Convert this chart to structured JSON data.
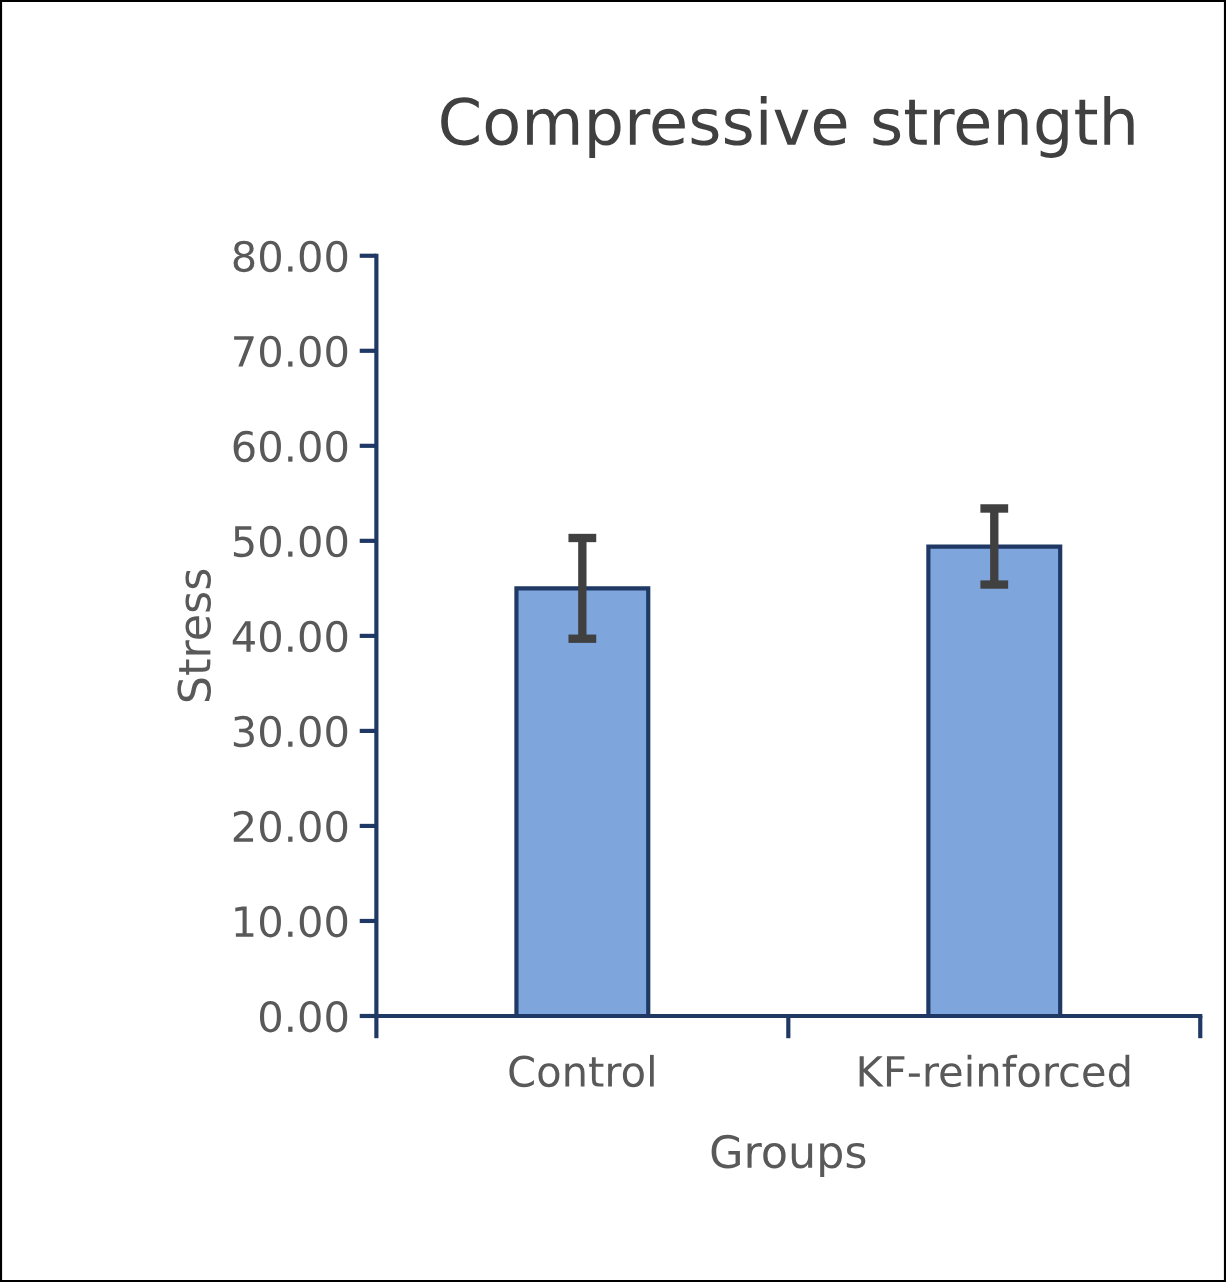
{
  "chart_data": {
    "type": "bar",
    "title": "Compressive strength",
    "xlabel": "Groups",
    "ylabel": "Stress",
    "categories": [
      "Control",
      "KF-reinforced"
    ],
    "series": [
      {
        "color": "#7ea6dc",
        "values": [
          45.0,
          49.4
        ],
        "errors": [
          5.3,
          4.0
        ]
      }
    ],
    "ylim": [
      0,
      80
    ],
    "yticks": [
      {
        "value": 0,
        "label": "0.00"
      },
      {
        "value": 10,
        "label": "10.00"
      },
      {
        "value": 20,
        "label": "20.00"
      },
      {
        "value": 30,
        "label": "30.00"
      },
      {
        "value": 40,
        "label": "40.00"
      },
      {
        "value": 50,
        "label": "50.00"
      },
      {
        "value": 60,
        "label": "60.00"
      },
      {
        "value": 70,
        "label": "70.00"
      },
      {
        "value": 80,
        "label": "80.00"
      }
    ],
    "grid": false,
    "legend": false
  }
}
